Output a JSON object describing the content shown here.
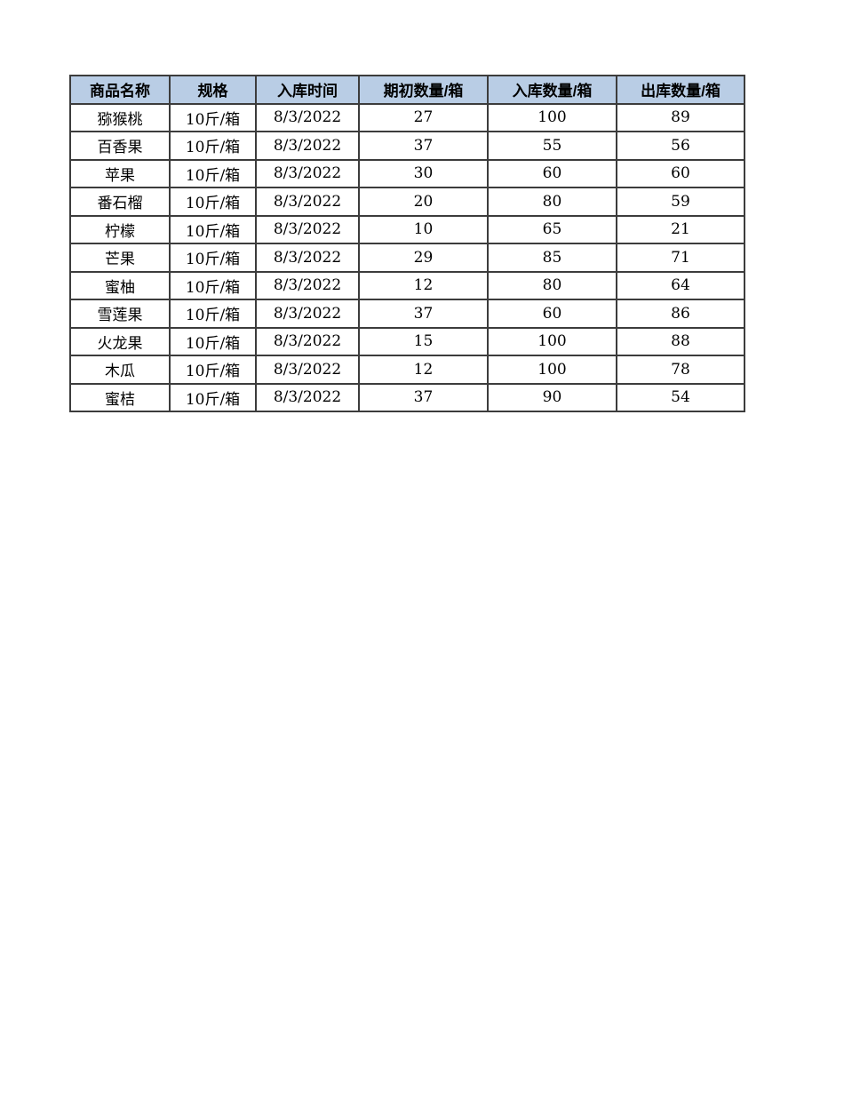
{
  "page": {
    "background": "#ffffff"
  },
  "table": {
    "name": "fruit-inventory-table",
    "header_bg": "#b9cde5",
    "border_color": "#3c3c3c",
    "text_color": "#000000",
    "columns": [
      "商品名称",
      "规格",
      "入库时间",
      "期初数量/箱",
      "入库数量/箱",
      "出库数量/箱"
    ],
    "rows": [
      [
        "猕猴桃",
        "10斤/箱",
        "8/3/2022",
        "27",
        "100",
        "89"
      ],
      [
        "百香果",
        "10斤/箱",
        "8/3/2022",
        "37",
        "55",
        "56"
      ],
      [
        "苹果",
        "10斤/箱",
        "8/3/2022",
        "30",
        "60",
        "60"
      ],
      [
        "番石榴",
        "10斤/箱",
        "8/3/2022",
        "20",
        "80",
        "59"
      ],
      [
        "柠檬",
        "10斤/箱",
        "8/3/2022",
        "10",
        "65",
        "21"
      ],
      [
        "芒果",
        "10斤/箱",
        "8/3/2022",
        "29",
        "85",
        "71"
      ],
      [
        "蜜柚",
        "10斤/箱",
        "8/3/2022",
        "12",
        "80",
        "64"
      ],
      [
        "雪莲果",
        "10斤/箱",
        "8/3/2022",
        "37",
        "60",
        "86"
      ],
      [
        "火龙果",
        "10斤/箱",
        "8/3/2022",
        "15",
        "100",
        "88"
      ],
      [
        "木瓜",
        "10斤/箱",
        "8/3/2022",
        "12",
        "100",
        "78"
      ],
      [
        "蜜桔",
        "10斤/箱",
        "8/3/2022",
        "37",
        "90",
        "54"
      ]
    ]
  }
}
